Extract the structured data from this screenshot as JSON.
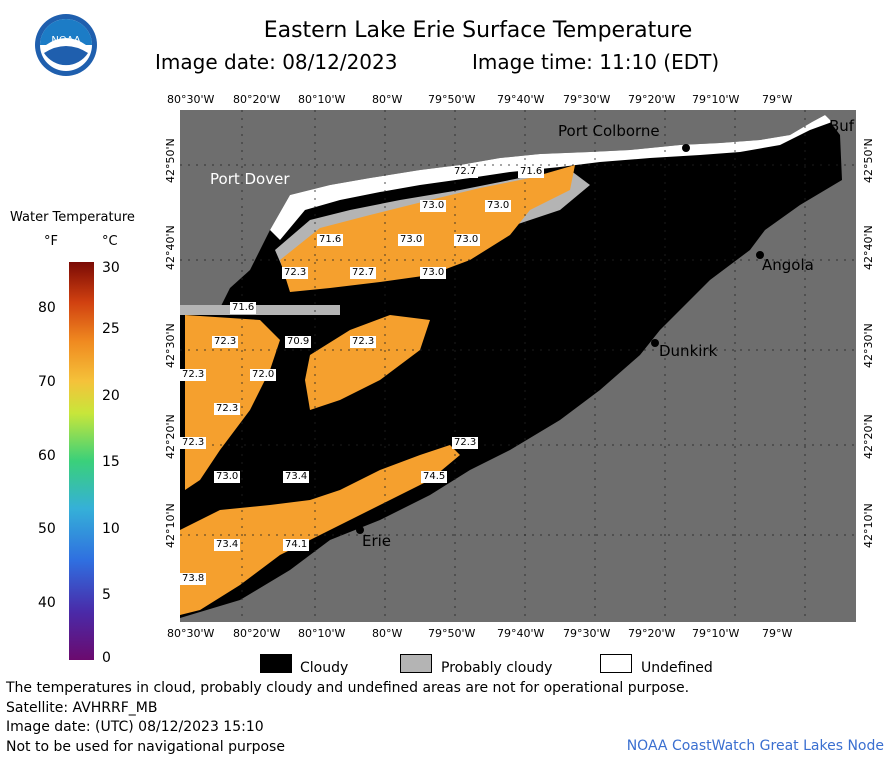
{
  "header": {
    "title": "Eastern Lake Erie Surface Temperature",
    "image_date": "Image date: 08/12/2023",
    "image_time": "Image time: 11:10 (EDT)",
    "logo_text": "NOAA"
  },
  "axes": {
    "lon_top": [
      "80°30'W",
      "80°20'W",
      "80°10'W",
      "80°W",
      "79°50'W",
      "79°40'W",
      "79°30'W",
      "79°20'W",
      "79°10'W",
      "79°W"
    ],
    "lon_bottom": [
      "80°30'W",
      "80°20'W",
      "80°10'W",
      "80°W",
      "79°50'W",
      "79°40'W",
      "79°30'W",
      "79°20'W",
      "79°10'W",
      "79°W"
    ],
    "lat_left": [
      "42°50'N",
      "42°40'N",
      "42°30'N",
      "42°20'N",
      "42°10'N"
    ],
    "lat_right": [
      "42°50'N",
      "42°40'N",
      "42°30'N",
      "42°20'N",
      "42°10'N"
    ]
  },
  "legend": {
    "title": "Water Temperature",
    "unit_f": "°F",
    "unit_c": "°C",
    "f_ticks": [
      "80",
      "70",
      "60",
      "50",
      "40"
    ],
    "c_ticks": [
      "30",
      "25",
      "20",
      "15",
      "10",
      "5",
      "0"
    ]
  },
  "places": {
    "port_dover": "Port Dover",
    "port_colborne": "Port Colborne",
    "buffalo": "Buf",
    "angola": "Angola",
    "dunkirk": "Dunkirk",
    "erie": "Erie"
  },
  "temps": [
    {
      "id": "t1",
      "v": "72.7"
    },
    {
      "id": "t2",
      "v": "71.6"
    },
    {
      "id": "t3",
      "v": "73.0"
    },
    {
      "id": "t4",
      "v": "73.0"
    },
    {
      "id": "t5",
      "v": "71.6"
    },
    {
      "id": "t6",
      "v": "73.0"
    },
    {
      "id": "t7",
      "v": "73.0"
    },
    {
      "id": "t8",
      "v": "72.3"
    },
    {
      "id": "t9",
      "v": "72.7"
    },
    {
      "id": "t10",
      "v": "73.0"
    },
    {
      "id": "t11",
      "v": "71.6"
    },
    {
      "id": "t12",
      "v": "72.3"
    },
    {
      "id": "t13",
      "v": "70.9"
    },
    {
      "id": "t14",
      "v": "72.3"
    },
    {
      "id": "t15",
      "v": "72.3"
    },
    {
      "id": "t16",
      "v": "72.0"
    },
    {
      "id": "t17",
      "v": "72.3"
    },
    {
      "id": "t18",
      "v": "72.3"
    },
    {
      "id": "t19",
      "v": "72.3"
    },
    {
      "id": "t20",
      "v": "73.0"
    },
    {
      "id": "t21",
      "v": "73.4"
    },
    {
      "id": "t22",
      "v": "74.5"
    },
    {
      "id": "t23",
      "v": "73.4"
    },
    {
      "id": "t24",
      "v": "74.1"
    },
    {
      "id": "t25",
      "v": "73.8"
    }
  ],
  "key": {
    "cloudy": "Cloudy",
    "probably_cloudy": "Probably cloudy",
    "undefined": "Undefined"
  },
  "footer": {
    "note": "The temperatures in cloud, probably cloudy and undefined areas are not for operational purpose.",
    "satellite": "Satellite: AVHRRF_MB",
    "utc_date": "Image date: (UTC) 08/12/2023  15:10",
    "nav": "Not to be used for navigational purpose",
    "credit": "NOAA CoastWatch Great Lakes Node"
  },
  "colors": {
    "land": "#6e6e6e",
    "cloud": "#000000",
    "probably_cloudy": "#b4b4b4",
    "water_warm": "#f5a02e",
    "undefined": "#ffffff"
  }
}
